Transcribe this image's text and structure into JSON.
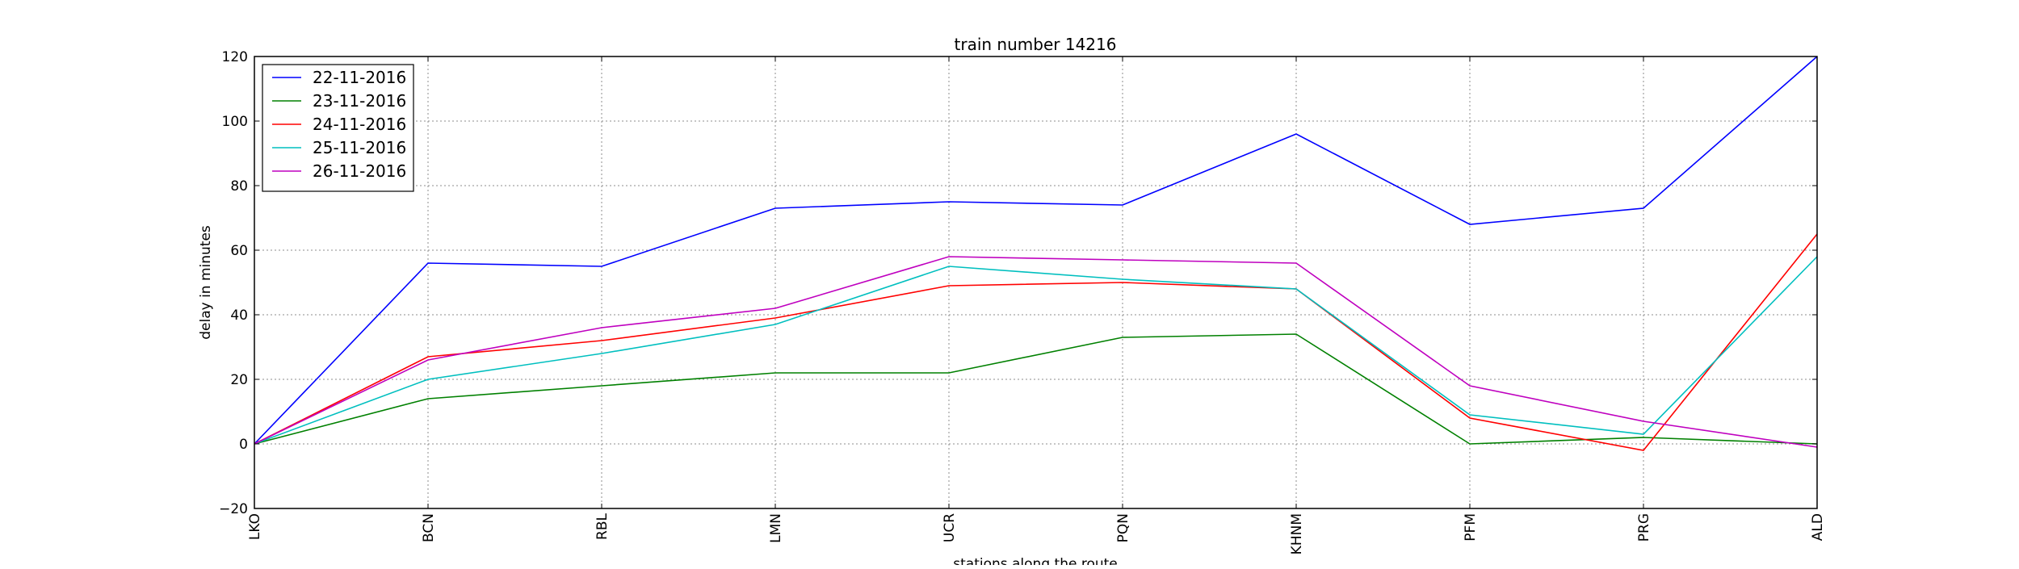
{
  "chart_data": {
    "type": "line",
    "title": "train number 14216",
    "xlabel": "stations along the route",
    "ylabel": "delay in minutes",
    "categories": [
      "LKO",
      "BCN",
      "RBL",
      "LMN",
      "UCR",
      "PQN",
      "KHNM",
      "PFM",
      "PRG",
      "ALD"
    ],
    "ylim": [
      -20,
      120
    ],
    "yticks": [
      -20,
      0,
      20,
      40,
      60,
      80,
      100,
      120
    ],
    "grid": true,
    "legend_position": "top-left",
    "series": [
      {
        "name": "22-11-2016",
        "color": "#0000ff",
        "values": [
          0,
          56,
          55,
          73,
          75,
          74,
          96,
          68,
          73,
          120
        ]
      },
      {
        "name": "23-11-2016",
        "color": "#008000",
        "values": [
          0,
          14,
          18,
          22,
          22,
          33,
          34,
          0,
          2,
          0
        ]
      },
      {
        "name": "24-11-2016",
        "color": "#ff0000",
        "values": [
          0,
          27,
          32,
          39,
          49,
          50,
          48,
          8,
          -2,
          65
        ]
      },
      {
        "name": "25-11-2016",
        "color": "#00bfbf",
        "values": [
          0,
          20,
          28,
          37,
          55,
          51,
          48,
          9,
          3,
          58
        ]
      },
      {
        "name": "26-11-2016",
        "color": "#bf00bf",
        "values": [
          0,
          26,
          36,
          42,
          58,
          57,
          56,
          18,
          7,
          -1
        ]
      }
    ]
  }
}
